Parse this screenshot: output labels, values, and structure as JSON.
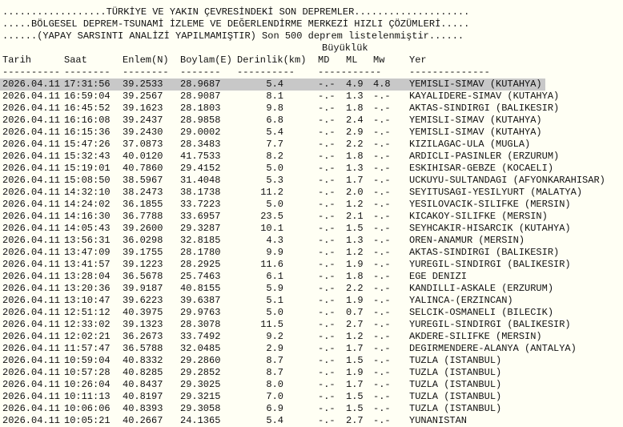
{
  "header": {
    "line1": "..................TÜRKİYE VE YAKIN ÇEVRESİNDEKİ SON DEPREMLER....................",
    "line2": ".....BÖLGESEL DEPREM-TSUNAMİ İZLEME VE DEĞERLENDİRME MERKEZİ HIZLI ÇÖZÜMLERİ.....",
    "line3": "......(YAPAY SARSINTI ANALİZİ YAPILMAMIŞTIR) Son 500 deprem listelenmiştir......",
    "magnitude_group": "Büyüklük"
  },
  "columns": {
    "date": "Tarih",
    "time": "Saat",
    "lat": "Enlem(N)",
    "lon": "Boylam(E)",
    "depth": "Derinlik(km)",
    "md": "MD",
    "ml": "ML",
    "mw": "Mw",
    "loc": "Yer"
  },
  "dashes": {
    "date": "----------",
    "time": "--------",
    "lat": "--------",
    "lon": "-------",
    "depth": "----------",
    "mag": "-----------",
    "loc": "--------------"
  },
  "highlight_color": "#c8c8c8",
  "rows": [
    {
      "date": "2026.04.11",
      "time": "17:31:56",
      "lat": "39.2533",
      "lon": "28.9687",
      "depth": "5.4",
      "md": "-.-",
      "ml": "4.9",
      "mw": "4.8",
      "loc": "YEMISLI-SIMAV (KUTAHYA)",
      "selected": true
    },
    {
      "date": "2026.04.11",
      "time": "16:59:04",
      "lat": "39.2567",
      "lon": "28.9087",
      "depth": "8.1",
      "md": "-.-",
      "ml": "1.3",
      "mw": "-.-",
      "loc": "KAYALIDERE-SIMAV (KUTAHYA)"
    },
    {
      "date": "2026.04.11",
      "time": "16:45:52",
      "lat": "39.1623",
      "lon": "28.1803",
      "depth": "9.8",
      "md": "-.-",
      "ml": "1.8",
      "mw": "-.-",
      "loc": "AKTAS-SINDIRGI (BALIKESIR)"
    },
    {
      "date": "2026.04.11",
      "time": "16:16:08",
      "lat": "39.2437",
      "lon": "28.9858",
      "depth": "6.8",
      "md": "-.-",
      "ml": "2.4",
      "mw": "-.-",
      "loc": "YEMISLI-SIMAV (KUTAHYA)"
    },
    {
      "date": "2026.04.11",
      "time": "16:15:36",
      "lat": "39.2430",
      "lon": "29.0002",
      "depth": "5.4",
      "md": "-.-",
      "ml": "2.9",
      "mw": "-.-",
      "loc": "YEMISLI-SIMAV (KUTAHYA)"
    },
    {
      "date": "2026.04.11",
      "time": "15:47:26",
      "lat": "37.0873",
      "lon": "28.3483",
      "depth": "7.7",
      "md": "-.-",
      "ml": "2.2",
      "mw": "-.-",
      "loc": "KIZILAGAC-ULA (MUGLA)"
    },
    {
      "date": "2026.04.11",
      "time": "15:32:43",
      "lat": "40.0120",
      "lon": "41.7533",
      "depth": "8.2",
      "md": "-.-",
      "ml": "1.8",
      "mw": "-.-",
      "loc": "ARDICLI-PASINLER (ERZURUM)"
    },
    {
      "date": "2026.04.11",
      "time": "15:19:01",
      "lat": "40.7860",
      "lon": "29.4152",
      "depth": "5.0",
      "md": "-.-",
      "ml": "1.3",
      "mw": "-.-",
      "loc": "ESKIHISAR-GEBZE (KOCAELI)"
    },
    {
      "date": "2026.04.11",
      "time": "15:08:50",
      "lat": "38.5967",
      "lon": "31.4048",
      "depth": "5.3",
      "md": "-.-",
      "ml": "1.7",
      "mw": "-.-",
      "loc": "UCKUYU-SULTANDAGI (AFYONKARAHISAR)"
    },
    {
      "date": "2026.04.11",
      "time": "14:32:10",
      "lat": "38.2473",
      "lon": "38.1738",
      "depth": "11.2",
      "md": "-.-",
      "ml": "2.0",
      "mw": "-.-",
      "loc": "SEYITUSAGI-YESILYURT (MALATYA)"
    },
    {
      "date": "2026.04.11",
      "time": "14:24:02",
      "lat": "36.1855",
      "lon": "33.7223",
      "depth": "5.0",
      "md": "-.-",
      "ml": "1.2",
      "mw": "-.-",
      "loc": "YESILOVACIK-SILIFKE (MERSIN)"
    },
    {
      "date": "2026.04.11",
      "time": "14:16:30",
      "lat": "36.7788",
      "lon": "33.6957",
      "depth": "23.5",
      "md": "-.-",
      "ml": "2.1",
      "mw": "-.-",
      "loc": "KICAKOY-SILIFKE (MERSIN)"
    },
    {
      "date": "2026.04.11",
      "time": "14:05:43",
      "lat": "39.2600",
      "lon": "29.3287",
      "depth": "10.1",
      "md": "-.-",
      "ml": "1.5",
      "mw": "-.-",
      "loc": "SEYHCAKIR-HISARCIK (KUTAHYA)"
    },
    {
      "date": "2026.04.11",
      "time": "13:56:31",
      "lat": "36.0298",
      "lon": "32.8185",
      "depth": "4.3",
      "md": "-.-",
      "ml": "1.3",
      "mw": "-.-",
      "loc": "OREN-ANAMUR (MERSIN)"
    },
    {
      "date": "2026.04.11",
      "time": "13:47:09",
      "lat": "39.1755",
      "lon": "28.1780",
      "depth": "9.9",
      "md": "-.-",
      "ml": "1.2",
      "mw": "-.-",
      "loc": "AKTAS-SINDIRGI (BALIKESIR)"
    },
    {
      "date": "2026.04.11",
      "time": "13:41:57",
      "lat": "39.1223",
      "lon": "28.2925",
      "depth": "11.6",
      "md": "-.-",
      "ml": "1.9",
      "mw": "-.-",
      "loc": "YUREGIL-SINDIRGI (BALIKESIR)"
    },
    {
      "date": "2026.04.11",
      "time": "13:28:04",
      "lat": "36.5678",
      "lon": "25.7463",
      "depth": "6.1",
      "md": "-.-",
      "ml": "1.8",
      "mw": "-.-",
      "loc": "EGE DENIZI"
    },
    {
      "date": "2026.04.11",
      "time": "13:20:36",
      "lat": "39.9187",
      "lon": "40.8155",
      "depth": "5.9",
      "md": "-.-",
      "ml": "2.2",
      "mw": "-.-",
      "loc": "KANDILLI-ASKALE (ERZURUM)"
    },
    {
      "date": "2026.04.11",
      "time": "13:10:47",
      "lat": "39.6223",
      "lon": "39.6387",
      "depth": "5.1",
      "md": "-.-",
      "ml": "1.9",
      "mw": "-.-",
      "loc": "YALINCA-(ERZINCAN)"
    },
    {
      "date": "2026.04.11",
      "time": "12:51:12",
      "lat": "40.3975",
      "lon": "29.9763",
      "depth": "5.0",
      "md": "-.-",
      "ml": "0.7",
      "mw": "-.-",
      "loc": "SELCIK-OSMANELI (BILECIK)"
    },
    {
      "date": "2026.04.11",
      "time": "12:33:02",
      "lat": "39.1323",
      "lon": "28.3078",
      "depth": "11.5",
      "md": "-.-",
      "ml": "2.7",
      "mw": "-.-",
      "loc": "YUREGIL-SINDIRGI (BALIKESIR)"
    },
    {
      "date": "2026.04.11",
      "time": "12:02:21",
      "lat": "36.2673",
      "lon": "33.7492",
      "depth": "9.2",
      "md": "-.-",
      "ml": "1.2",
      "mw": "-.-",
      "loc": "AKDERE-SILIFKE (MERSIN)"
    },
    {
      "date": "2026.04.11",
      "time": "11:57:47",
      "lat": "36.5788",
      "lon": "32.0485",
      "depth": "2.9",
      "md": "-.-",
      "ml": "1.7",
      "mw": "-.-",
      "loc": "DEGIRMENDERE-ALANYA (ANTALYA)"
    },
    {
      "date": "2026.04.11",
      "time": "10:59:04",
      "lat": "40.8332",
      "lon": "29.2860",
      "depth": "8.7",
      "md": "-.-",
      "ml": "1.5",
      "mw": "-.-",
      "loc": "TUZLA (ISTANBUL)"
    },
    {
      "date": "2026.04.11",
      "time": "10:57:28",
      "lat": "40.8285",
      "lon": "29.2852",
      "depth": "8.7",
      "md": "-.-",
      "ml": "1.9",
      "mw": "-.-",
      "loc": "TUZLA (ISTANBUL)"
    },
    {
      "date": "2026.04.11",
      "time": "10:26:04",
      "lat": "40.8437",
      "lon": "29.3025",
      "depth": "8.0",
      "md": "-.-",
      "ml": "1.7",
      "mw": "-.-",
      "loc": "TUZLA (ISTANBUL)"
    },
    {
      "date": "2026.04.11",
      "time": "10:11:13",
      "lat": "40.8197",
      "lon": "29.3215",
      "depth": "7.0",
      "md": "-.-",
      "ml": "1.5",
      "mw": "-.-",
      "loc": "TUZLA (ISTANBUL)"
    },
    {
      "date": "2026.04.11",
      "time": "10:06:06",
      "lat": "40.8393",
      "lon": "29.3058",
      "depth": "6.9",
      "md": "-.-",
      "ml": "1.5",
      "mw": "-.-",
      "loc": "TUZLA (ISTANBUL)"
    },
    {
      "date": "2026.04.11",
      "time": "10:05:21",
      "lat": "40.2667",
      "lon": "24.1365",
      "depth": "5.4",
      "md": "-.-",
      "ml": "2.7",
      "mw": "-.-",
      "loc": "YUNANISTAN"
    }
  ]
}
